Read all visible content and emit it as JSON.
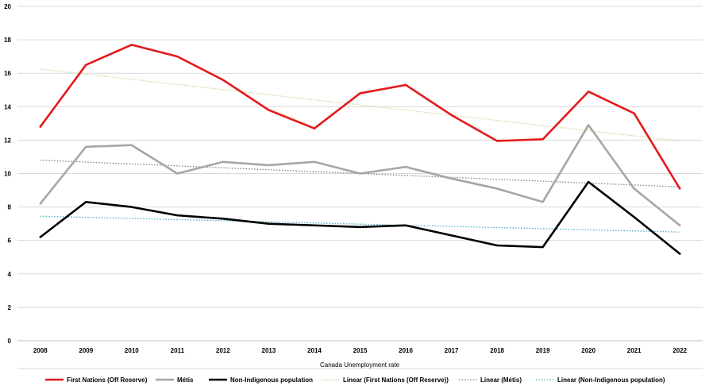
{
  "chart_data": {
    "type": "line",
    "xlabel": "Canada Unemployment rate",
    "ylabel": "",
    "ylim": [
      0,
      20
    ],
    "yticks": [
      0,
      2,
      4,
      6,
      8,
      10,
      12,
      14,
      16,
      18,
      20
    ],
    "grid": "horizontal",
    "legend_position": "bottom",
    "categories": [
      "2008",
      "2009",
      "2010",
      "2011",
      "2012",
      "2013",
      "2014",
      "2015",
      "2016",
      "2017",
      "2018",
      "2019",
      "2020",
      "2021",
      "2022"
    ],
    "series": [
      {
        "name": "First Nations (Off Reserve)",
        "color": "#e31a1c",
        "style": "solid",
        "values": [
          12.8,
          16.5,
          17.7,
          17.0,
          15.6,
          13.8,
          12.7,
          14.8,
          15.3,
          13.5,
          11.95,
          12.05,
          14.9,
          13.6,
          9.1
        ]
      },
      {
        "name": "Métis",
        "color": "#a6a6a6",
        "style": "solid",
        "values": [
          8.2,
          11.6,
          11.7,
          10.0,
          10.7,
          10.5,
          10.7,
          10.0,
          10.4,
          9.7,
          9.1,
          8.3,
          12.9,
          9.1,
          6.9
        ]
      },
      {
        "name": "Non-Indigenous population",
        "color": "#000000",
        "style": "solid",
        "values": [
          6.2,
          8.3,
          8.0,
          7.5,
          7.3,
          7.0,
          6.9,
          6.8,
          6.9,
          6.3,
          5.7,
          5.6,
          9.5,
          7.4,
          5.2
        ]
      }
    ],
    "trendlines": [
      {
        "name": "Linear (First Nations (Off Reserve))",
        "color": "#c4d79b",
        "style": "dotted",
        "start": 16.25,
        "end": 11.95
      },
      {
        "name": "Linear (Métis)",
        "color": "#7f7f9a",
        "style": "dotted",
        "start": 10.8,
        "end": 9.2
      },
      {
        "name": "Linear (Non-Indigenous population)",
        "color": "#4bacc6",
        "style": "dotted",
        "start": 7.45,
        "end": 6.5
      }
    ]
  }
}
